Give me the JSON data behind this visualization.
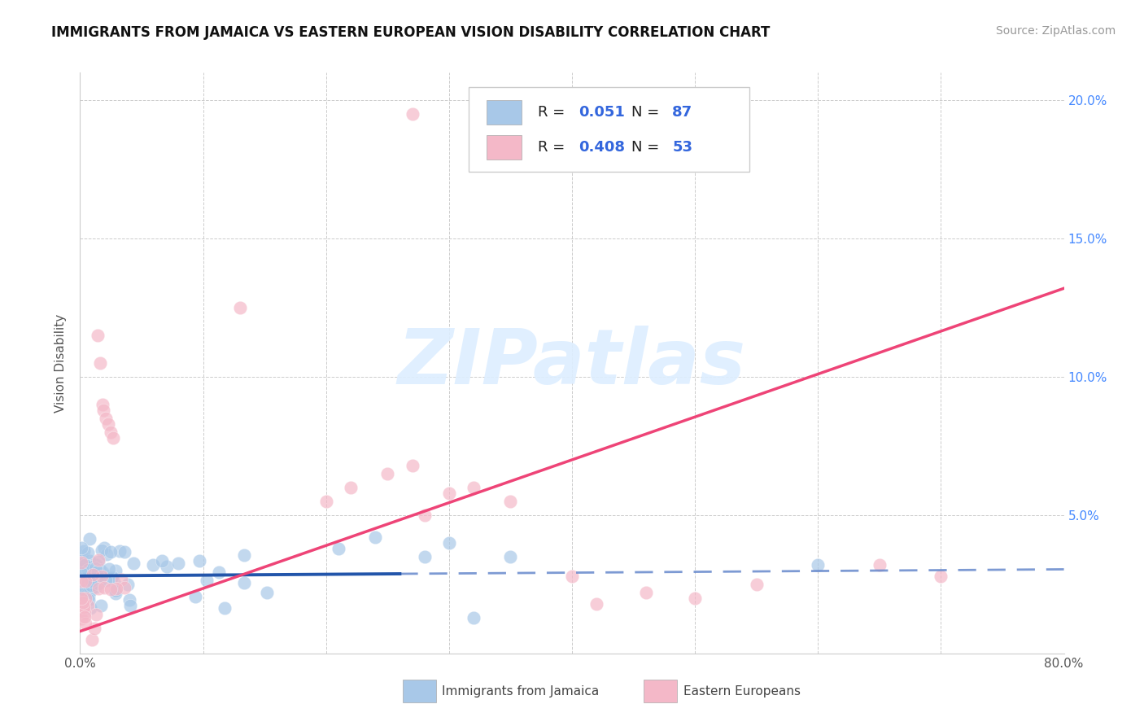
{
  "title": "IMMIGRANTS FROM JAMAICA VS EASTERN EUROPEAN VISION DISABILITY CORRELATION CHART",
  "source": "Source: ZipAtlas.com",
  "ylabel": "Vision Disability",
  "xlim": [
    0.0,
    0.8
  ],
  "ylim": [
    0.0,
    0.21
  ],
  "xtick_pos": [
    0.0,
    0.1,
    0.2,
    0.3,
    0.4,
    0.5,
    0.6,
    0.7,
    0.8
  ],
  "xticklabels": [
    "0.0%",
    "",
    "",
    "",
    "",
    "",
    "",
    "",
    "80.0%"
  ],
  "ytick_pos": [
    0.0,
    0.05,
    0.1,
    0.15,
    0.2
  ],
  "yticklabels_right": [
    "",
    "5.0%",
    "10.0%",
    "15.0%",
    "20.0%"
  ],
  "color_jamaica": "#a8c8e8",
  "color_eastern": "#f4b8c8",
  "color_jamaica_line": "#2255aa",
  "color_eastern_line": "#ee4477",
  "color_jamaica_line_dashed": "#6688cc",
  "watermark_text": "ZIPatlas",
  "watermark_color": "#ddeeff",
  "background_color": "#ffffff",
  "grid_color": "#cccccc",
  "legend_r1_val": "0.051",
  "legend_n1_val": "87",
  "legend_r2_val": "0.408",
  "legend_n2_val": "53",
  "num_jamaica": 87,
  "num_eastern": 53,
  "jamaica_trend_intercept": 0.028,
  "jamaica_trend_slope": 0.003,
  "eastern_trend_intercept": 0.008,
  "eastern_trend_slope": 0.155,
  "solid_line_end": 0.26,
  "dashed_line_start": 0.26,
  "title_fontsize": 12,
  "source_fontsize": 10,
  "tick_fontsize": 11,
  "legend_fontsize": 13
}
